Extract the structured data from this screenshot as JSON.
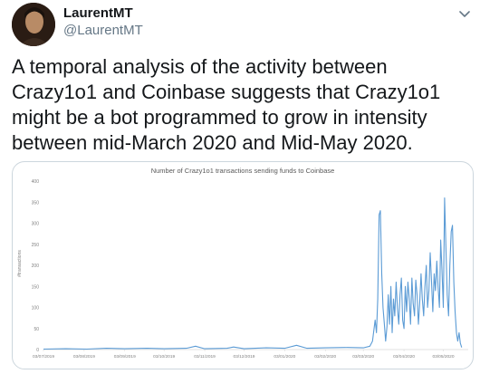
{
  "tweet": {
    "author_name": "LaurentMT",
    "author_handle": "@LaurentMT",
    "text": "A temporal analysis of the activity between Crazy1o1 and Coinbase suggests that Crazy1o1 might be a bot programmed to grow in intensity between mid-March 2020 and Mid-May 2020."
  },
  "icons": {
    "more": "chevron-down-icon",
    "avatar": "avatar"
  },
  "colors": {
    "name": "#14171a",
    "handle": "#657786",
    "series": "#5b9bd5",
    "card_border": "#ccd6dd"
  },
  "chart_data": {
    "type": "line",
    "title": "Number of Crazy1o1 transactions sending funds to Coinbase",
    "ylabel": "#transactions",
    "xlabel": "",
    "ylim": [
      0,
      400
    ],
    "yticks": [
      0,
      50,
      100,
      150,
      200,
      250,
      300,
      350,
      400
    ],
    "xlim": [
      "2019-07-03",
      "2020-05-22"
    ],
    "xticks": [
      "03/07/2019",
      "03/08/2019",
      "03/09/2019",
      "03/10/2019",
      "03/11/2019",
      "03/12/2019",
      "03/01/2020",
      "03/02/2020",
      "03/03/2020",
      "03/04/2020",
      "03/05/2020"
    ],
    "grid": false,
    "legend": "none",
    "series": [
      {
        "values": [
          [
            "2019-07-03",
            1
          ],
          [
            "2019-07-20",
            2
          ],
          [
            "2019-08-05",
            1
          ],
          [
            "2019-08-20",
            3
          ],
          [
            "2019-09-03",
            2
          ],
          [
            "2019-09-20",
            3
          ],
          [
            "2019-10-03",
            2
          ],
          [
            "2019-10-20",
            3
          ],
          [
            "2019-10-27",
            8
          ],
          [
            "2019-11-03",
            2
          ],
          [
            "2019-11-20",
            3
          ],
          [
            "2019-11-25",
            6
          ],
          [
            "2019-12-03",
            2
          ],
          [
            "2019-12-20",
            4
          ],
          [
            "2020-01-03",
            3
          ],
          [
            "2020-01-12",
            10
          ],
          [
            "2020-01-20",
            3
          ],
          [
            "2020-02-03",
            4
          ],
          [
            "2020-02-20",
            5
          ],
          [
            "2020-03-03",
            4
          ],
          [
            "2020-03-08",
            8
          ],
          [
            "2020-03-10",
            20
          ],
          [
            "2020-03-12",
            70
          ],
          [
            "2020-03-13",
            40
          ],
          [
            "2020-03-14",
            120
          ],
          [
            "2020-03-15",
            320
          ],
          [
            "2020-03-16",
            330
          ],
          [
            "2020-03-17",
            180
          ],
          [
            "2020-03-18",
            100
          ],
          [
            "2020-03-19",
            60
          ],
          [
            "2020-03-20",
            20
          ],
          [
            "2020-03-21",
            55
          ],
          [
            "2020-03-22",
            130
          ],
          [
            "2020-03-23",
            60
          ],
          [
            "2020-03-24",
            150
          ],
          [
            "2020-03-25",
            40
          ],
          [
            "2020-03-26",
            120
          ],
          [
            "2020-03-27",
            80
          ],
          [
            "2020-03-28",
            160
          ],
          [
            "2020-03-29",
            100
          ],
          [
            "2020-03-30",
            60
          ],
          [
            "2020-03-31",
            130
          ],
          [
            "2020-04-01",
            170
          ],
          [
            "2020-04-02",
            70
          ],
          [
            "2020-04-03",
            50
          ],
          [
            "2020-04-04",
            150
          ],
          [
            "2020-04-05",
            90
          ],
          [
            "2020-04-06",
            160
          ],
          [
            "2020-04-07",
            120
          ],
          [
            "2020-04-08",
            60
          ],
          [
            "2020-04-09",
            170
          ],
          [
            "2020-04-10",
            110
          ],
          [
            "2020-04-11",
            80
          ],
          [
            "2020-04-12",
            165
          ],
          [
            "2020-04-13",
            130
          ],
          [
            "2020-04-14",
            60
          ],
          [
            "2020-04-15",
            110
          ],
          [
            "2020-04-16",
            180
          ],
          [
            "2020-04-17",
            120
          ],
          [
            "2020-04-18",
            80
          ],
          [
            "2020-04-19",
            150
          ],
          [
            "2020-04-20",
            200
          ],
          [
            "2020-04-21",
            100
          ],
          [
            "2020-04-22",
            140
          ],
          [
            "2020-04-23",
            230
          ],
          [
            "2020-04-24",
            160
          ],
          [
            "2020-04-25",
            90
          ],
          [
            "2020-04-26",
            180
          ],
          [
            "2020-04-27",
            140
          ],
          [
            "2020-04-28",
            210
          ],
          [
            "2020-04-29",
            150
          ],
          [
            "2020-04-30",
            100
          ],
          [
            "2020-05-01",
            260
          ],
          [
            "2020-05-02",
            190
          ],
          [
            "2020-05-03",
            100
          ],
          [
            "2020-05-04",
            360
          ],
          [
            "2020-05-05",
            240
          ],
          [
            "2020-05-06",
            130
          ],
          [
            "2020-05-07",
            80
          ],
          [
            "2020-05-08",
            200
          ],
          [
            "2020-05-09",
            280
          ],
          [
            "2020-05-10",
            295
          ],
          [
            "2020-05-11",
            160
          ],
          [
            "2020-05-12",
            90
          ],
          [
            "2020-05-13",
            40
          ],
          [
            "2020-05-14",
            20
          ],
          [
            "2020-05-15",
            40
          ],
          [
            "2020-05-16",
            15
          ],
          [
            "2020-05-17",
            5
          ]
        ]
      }
    ]
  }
}
